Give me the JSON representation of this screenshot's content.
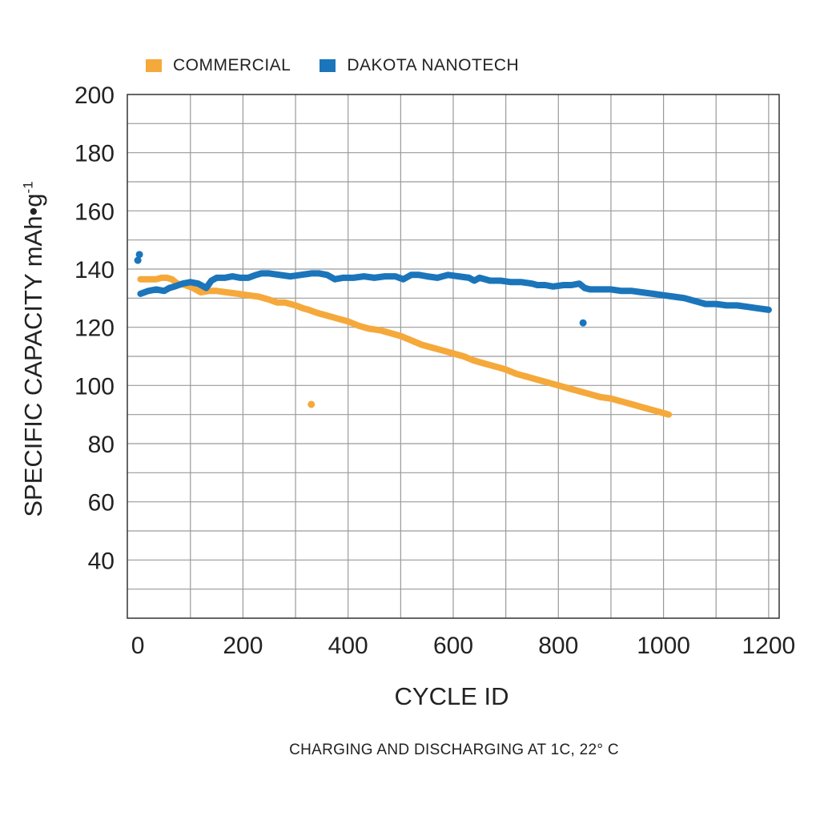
{
  "chart_data": {
    "type": "line",
    "xlabel": "CYCLE ID",
    "ylabel": "SPECIFIC CAPACITY mAh•g",
    "ylabel_superscript": "-1",
    "caption": "CHARGING AND DISCHARGING AT 1C, 22° C",
    "xlim": [
      -20,
      1220
    ],
    "ylim": [
      20,
      200
    ],
    "x_ticks": [
      0,
      200,
      400,
      600,
      800,
      1000,
      1200
    ],
    "y_ticks": [
      40,
      60,
      80,
      100,
      120,
      140,
      160,
      180,
      200
    ],
    "grid": true,
    "legend_position": "top",
    "series": [
      {
        "name": "COMMERCIAL",
        "color": "#F5A93B",
        "x": [
          5,
          20,
          35,
          45,
          55,
          65,
          75,
          90,
          105,
          120,
          135,
          150,
          170,
          190,
          210,
          230,
          250,
          265,
          280,
          300,
          315,
          325,
          340,
          360,
          380,
          400,
          420,
          440,
          460,
          480,
          500,
          520,
          540,
          560,
          580,
          600,
          620,
          640,
          660,
          680,
          700,
          720,
          740,
          760,
          780,
          800,
          820,
          840,
          860,
          880,
          900,
          920,
          940,
          960,
          980,
          1000,
          1010
        ],
        "y": [
          136.5,
          136.5,
          136.5,
          137,
          137,
          136.5,
          135,
          134.5,
          133.5,
          132,
          132.5,
          132.5,
          132,
          131.5,
          131,
          130.5,
          129.5,
          128.5,
          128.5,
          127.5,
          126.5,
          126,
          125,
          124,
          123,
          122,
          120.5,
          119.5,
          119,
          118,
          117,
          115.5,
          114,
          113,
          112,
          111,
          110,
          108.5,
          107.5,
          106.5,
          105.5,
          104,
          103,
          102,
          101,
          100,
          99,
          98,
          97,
          96,
          95.5,
          94.5,
          93.5,
          92.5,
          91.5,
          90.5,
          90
        ]
      },
      {
        "name": "DAKOTA NANOTECH",
        "color": "#1B75BB",
        "x": [
          5,
          20,
          35,
          50,
          60,
          70,
          85,
          100,
          115,
          130,
          140,
          150,
          165,
          180,
          195,
          210,
          225,
          235,
          250,
          270,
          290,
          310,
          330,
          345,
          360,
          375,
          390,
          410,
          430,
          450,
          470,
          490,
          505,
          520,
          535,
          550,
          570,
          590,
          610,
          630,
          640,
          650,
          670,
          690,
          710,
          730,
          750,
          760,
          775,
          790,
          810,
          825,
          840,
          850,
          860,
          880,
          900,
          920,
          940,
          960,
          980,
          1000,
          1020,
          1040,
          1060,
          1080,
          1100,
          1120,
          1140,
          1160,
          1180,
          1200
        ],
        "y": [
          131.5,
          132.5,
          133,
          132.5,
          133.5,
          134,
          135,
          135.5,
          135,
          133.5,
          136,
          137,
          137,
          137.5,
          137,
          137,
          138,
          138.5,
          138.5,
          138,
          137.5,
          138,
          138.5,
          138.5,
          138,
          136.5,
          137,
          137,
          137.5,
          137,
          137.5,
          137.5,
          136.5,
          138,
          138,
          137.5,
          137,
          138,
          137.5,
          137,
          136,
          137,
          136,
          136,
          135.5,
          135.5,
          135,
          134.5,
          134.5,
          134,
          134.5,
          134.5,
          135,
          133.5,
          133,
          133,
          133,
          132.5,
          132.5,
          132,
          131.5,
          131,
          130.5,
          130,
          129,
          128,
          128,
          127.5,
          127.5,
          127,
          126.5,
          126
        ]
      }
    ],
    "outliers": [
      {
        "series": "COMMERCIAL",
        "x": 330,
        "y": 93.5
      },
      {
        "series": "DAKOTA NANOTECH",
        "x": 0,
        "y": 143
      },
      {
        "series": "DAKOTA NANOTECH",
        "x": 3,
        "y": 145
      },
      {
        "series": "DAKOTA NANOTECH",
        "x": 847,
        "y": 121.5
      }
    ]
  }
}
